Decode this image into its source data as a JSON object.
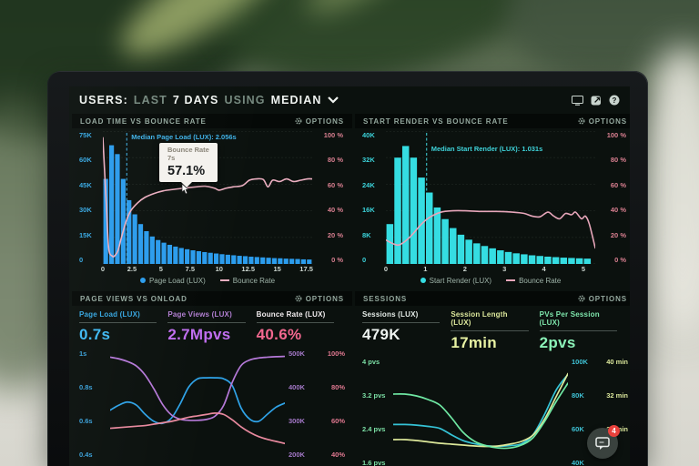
{
  "header": {
    "title_segments": [
      {
        "text": "USERS:",
        "dim": false
      },
      {
        "text": "LAST",
        "dim": true
      },
      {
        "text": "7 DAYS",
        "dim": false
      },
      {
        "text": "USING",
        "dim": true
      },
      {
        "text": "MEDIAN",
        "dim": false
      }
    ],
    "icons": [
      "display-icon",
      "share-icon",
      "help-icon"
    ]
  },
  "panels": [
    {
      "title": "LOAD TIME VS BOUNCE RATE",
      "options_label": "OPTIONS"
    },
    {
      "title": "START RENDER VS BOUNCE RATE",
      "options_label": "OPTIONS"
    },
    {
      "title": "PAGE VIEWS VS ONLOAD",
      "options_label": "OPTIONS",
      "metrics": [
        {
          "label": "Page Load (LUX)",
          "value": "0.7s",
          "label_color": "#36a6e0",
          "value_color": "#3fb8f2"
        },
        {
          "label": "Page Views (LUX)",
          "value": "2.7Mpvs",
          "label_color": "#b27fd2",
          "value_color": "#c06ef0"
        },
        {
          "label": "Bounce Rate (LUX)",
          "value": "40.6%",
          "label_color": "#f3eef0",
          "value_color": "#f2688f"
        }
      ]
    },
    {
      "title": "SESSIONS",
      "options_label": "OPTIONS",
      "metrics": [
        {
          "label": "Sessions (LUX)",
          "value": "479K",
          "label_color": "#e6ede9",
          "value_color": "#eef3f0"
        },
        {
          "label": "Session Length (LUX)",
          "value": "17min",
          "label_color": "#dde89c",
          "value_color": "#e8f2a3"
        },
        {
          "label": "PVs Per Session (LUX)",
          "value": "2pvs",
          "label_color": "#7fe8ad",
          "value_color": "#8bf2b8"
        }
      ]
    }
  ],
  "chart_data": [
    {
      "id": "load-time-vs-bounce-rate",
      "type": "bar+line",
      "title": "LOAD TIME VS BOUNCE RATE",
      "x_max": 18,
      "bar_step": 0.5,
      "x_ticks": [
        "0",
        "2.5",
        "5",
        "7.5",
        "10",
        "12.5",
        "15",
        "17.5"
      ],
      "y_left": {
        "labels": [
          "75K",
          "60K",
          "45K",
          "30K",
          "15K",
          "0"
        ],
        "max_k": 75,
        "color": "#36a6e0"
      },
      "y_right": {
        "labels": [
          "100 %",
          "80 %",
          "60 %",
          "40 %",
          "20 %",
          "0 %"
        ],
        "max": 100,
        "color": "#d97f90"
      },
      "bar_color": "#2b9ced",
      "line_color": "#ecafc1",
      "bars_k": [
        48,
        67,
        62,
        48,
        36,
        28,
        22.5,
        18.5,
        15.5,
        13.5,
        12,
        10.8,
        9.8,
        9,
        8.3,
        7.7,
        7.2,
        6.7,
        6.3,
        5.9,
        5.5,
        5.2,
        4.9,
        4.6,
        4.4,
        4.1,
        3.9,
        3.7,
        3.5,
        3.3,
        3.2,
        3,
        2.9,
        2.8,
        2.6,
        2.5
      ],
      "line_pct": [
        [
          0,
          95
        ],
        [
          0.3,
          45
        ],
        [
          0.5,
          12
        ],
        [
          0.8,
          6
        ],
        [
          1,
          6
        ],
        [
          1.3,
          10
        ],
        [
          1.6,
          20
        ],
        [
          2,
          32
        ],
        [
          2.4,
          40
        ],
        [
          3,
          46
        ],
        [
          3.6,
          50
        ],
        [
          4.4,
          53
        ],
        [
          5.2,
          55
        ],
        [
          6,
          56
        ],
        [
          7,
          57.1
        ],
        [
          8,
          58
        ],
        [
          8.8,
          58.5
        ],
        [
          9.6,
          57
        ],
        [
          10,
          55.5
        ],
        [
          10.6,
          57
        ],
        [
          11.2,
          58
        ],
        [
          12,
          59
        ],
        [
          12.6,
          63
        ],
        [
          13.2,
          64
        ],
        [
          13.8,
          63.5
        ],
        [
          14.2,
          58
        ],
        [
          14.6,
          63
        ],
        [
          15.2,
          62
        ],
        [
          15.8,
          64
        ],
        [
          16.4,
          62
        ],
        [
          17,
          63
        ],
        [
          17.6,
          64
        ],
        [
          18,
          64
        ]
      ],
      "annotation": {
        "text": "Median Page Load (LUX): 2.056s",
        "x": 2.056,
        "color": "#3fb2e8",
        "dy": 9
      },
      "legend": [
        {
          "type": "dot",
          "color": "#2b9ced",
          "label": "Page Load (LUX)"
        },
        {
          "type": "line",
          "color": "#ecafc1",
          "label": "Bounce Rate"
        }
      ],
      "tooltip": {
        "line1": "Bounce Rate",
        "line2": "7s",
        "value": "57.1%"
      }
    },
    {
      "id": "start-render-vs-bounce-rate",
      "type": "bar+line",
      "title": "START RENDER VS BOUNCE RATE",
      "x_max": 5.3,
      "bar_step": 0.2,
      "x_ticks": [
        "0",
        "1",
        "2",
        "3",
        "4",
        "5"
      ],
      "y_left": {
        "labels": [
          "40K",
          "32K",
          "24K",
          "16K",
          "8K",
          "0"
        ],
        "max_k": 40,
        "color": "#3bd3da"
      },
      "y_right": {
        "labels": [
          "100 %",
          "80 %",
          "60 %",
          "40 %",
          "20 %",
          "0 %"
        ],
        "max": 100,
        "color": "#d97f90"
      },
      "bar_color": "#35dde2",
      "line_color": "#e7a6ba",
      "bars_k": [
        12,
        32,
        35.5,
        32,
        26,
        21.5,
        17,
        13.5,
        10.8,
        8.8,
        7.3,
        6.2,
        5.4,
        4.7,
        4.1,
        3.6,
        3.2,
        2.9,
        2.6,
        2.4,
        2.2,
        2.05,
        1.9,
        1.8,
        1.7,
        1.6
      ],
      "line_pct": [
        [
          0,
          18
        ],
        [
          0.2,
          15
        ],
        [
          0.35,
          14.5
        ],
        [
          0.6,
          20
        ],
        [
          0.9,
          30
        ],
        [
          1.1,
          35
        ],
        [
          1.4,
          39
        ],
        [
          1.7,
          40
        ],
        [
          2,
          40
        ],
        [
          2.4,
          39.5
        ],
        [
          2.8,
          39.5
        ],
        [
          3.2,
          39
        ],
        [
          3.5,
          38
        ],
        [
          3.7,
          36
        ],
        [
          3.9,
          35.5
        ],
        [
          4.1,
          39
        ],
        [
          4.25,
          36
        ],
        [
          4.4,
          34
        ],
        [
          4.55,
          38
        ],
        [
          4.7,
          37
        ],
        [
          4.8,
          39
        ],
        [
          4.95,
          34
        ],
        [
          5.05,
          36
        ],
        [
          5.15,
          30
        ],
        [
          5.3,
          12
        ]
      ],
      "annotation": {
        "text": "Median Start Render (LUX): 1.031s",
        "x": 1.031,
        "color": "#3fd3da",
        "dy": 22
      },
      "legend": [
        {
          "type": "dot",
          "color": "#35dde2",
          "label": "Start Render (LUX)"
        },
        {
          "type": "line",
          "color": "#e7a6ba",
          "label": "Bounce Rate"
        }
      ]
    },
    {
      "id": "page-views-vs-onload",
      "type": "line",
      "title": "PAGE VIEWS VS ONLOAD",
      "y_left": {
        "labels": [
          "1s",
          "0.8s",
          "0.6s",
          "0.4s"
        ],
        "color": "#3aa0d8"
      },
      "y_right_rows": [
        [
          "500K",
          "100%"
        ],
        [
          "400K",
          "80%"
        ],
        [
          "300K",
          "60%"
        ],
        [
          "200K",
          "40%"
        ]
      ],
      "y_right_colors": [
        "#a478c8",
        "#e07890"
      ],
      "series": [
        {
          "name": "Page Load (LUX)",
          "color": "#2fa3e8",
          "unit": "s",
          "min": 0.38,
          "max": 0.92,
          "values": [
            0.62,
            0.645,
            0.66,
            0.645,
            0.6,
            0.565,
            0.555,
            0.58,
            0.65,
            0.735,
            0.775,
            0.78,
            0.78,
            0.775,
            0.74,
            0.63,
            0.575,
            0.565,
            0.6,
            0.635,
            0.655
          ]
        },
        {
          "name": "Page Views (LUX)",
          "color": "#b579d8",
          "unit": "K",
          "min": 110,
          "max": 508,
          "values": [
            480,
            474,
            464,
            448,
            415,
            365,
            308,
            270,
            254,
            250,
            250,
            253,
            265,
            305,
            390,
            450,
            470,
            477,
            480,
            482,
            483
          ]
        },
        {
          "name": "Bounce Rate (LUX)",
          "color": "#e8899e",
          "unit": "%",
          "min": 19,
          "max": 98,
          "values": [
            41,
            41.5,
            42,
            42.5,
            43,
            44,
            45,
            46,
            47.5,
            49,
            50,
            51,
            52,
            51,
            47,
            42,
            38,
            35,
            33,
            31.5,
            30
          ]
        }
      ]
    },
    {
      "id": "sessions",
      "type": "line",
      "title": "SESSIONS",
      "y_left": {
        "labels": [
          "4 pvs",
          "3.2 pvs",
          "2.4 pvs",
          "1.6 pvs"
        ],
        "color": "#7ce0a6"
      },
      "y_right_rows": [
        [
          "100K",
          "40 min"
        ],
        [
          "80K",
          "32 min"
        ],
        [
          "60K",
          "24 min"
        ],
        [
          "40K",
          ""
        ]
      ],
      "y_right_colors": [
        "#3fc3d6",
        "#dbe79b"
      ],
      "series": [
        {
          "name": "Sessions (LUX)",
          "color": "#35c3d6",
          "unit": "K",
          "min": 25,
          "max": 110,
          "values": [
            58,
            58,
            57.5,
            56.5,
            55,
            50,
            45.5,
            43,
            41.5,
            41,
            41.5,
            43,
            50,
            66,
            85,
            97
          ]
        },
        {
          "name": "Session Length (LUX)",
          "color": "#dde89a",
          "unit": "min",
          "min": 12,
          "max": 36,
          "values": [
            18,
            18,
            17.8,
            17.5,
            17.2,
            17,
            16.8,
            16.6,
            16.5,
            16.6,
            17,
            17.6,
            19,
            22.5,
            27.5,
            32.5
          ]
        },
        {
          "name": "PVs Per Session (LUX)",
          "color": "#6fe8a3",
          "unit": "pvs",
          "min": 1.2,
          "max": 4.2,
          "values": [
            3.2,
            3.2,
            3.15,
            3.05,
            2.9,
            2.55,
            2.15,
            1.9,
            1.78,
            1.72,
            1.72,
            1.8,
            2.0,
            2.45,
            3.0,
            3.5
          ]
        }
      ]
    }
  ],
  "chat": {
    "badge": "4"
  }
}
